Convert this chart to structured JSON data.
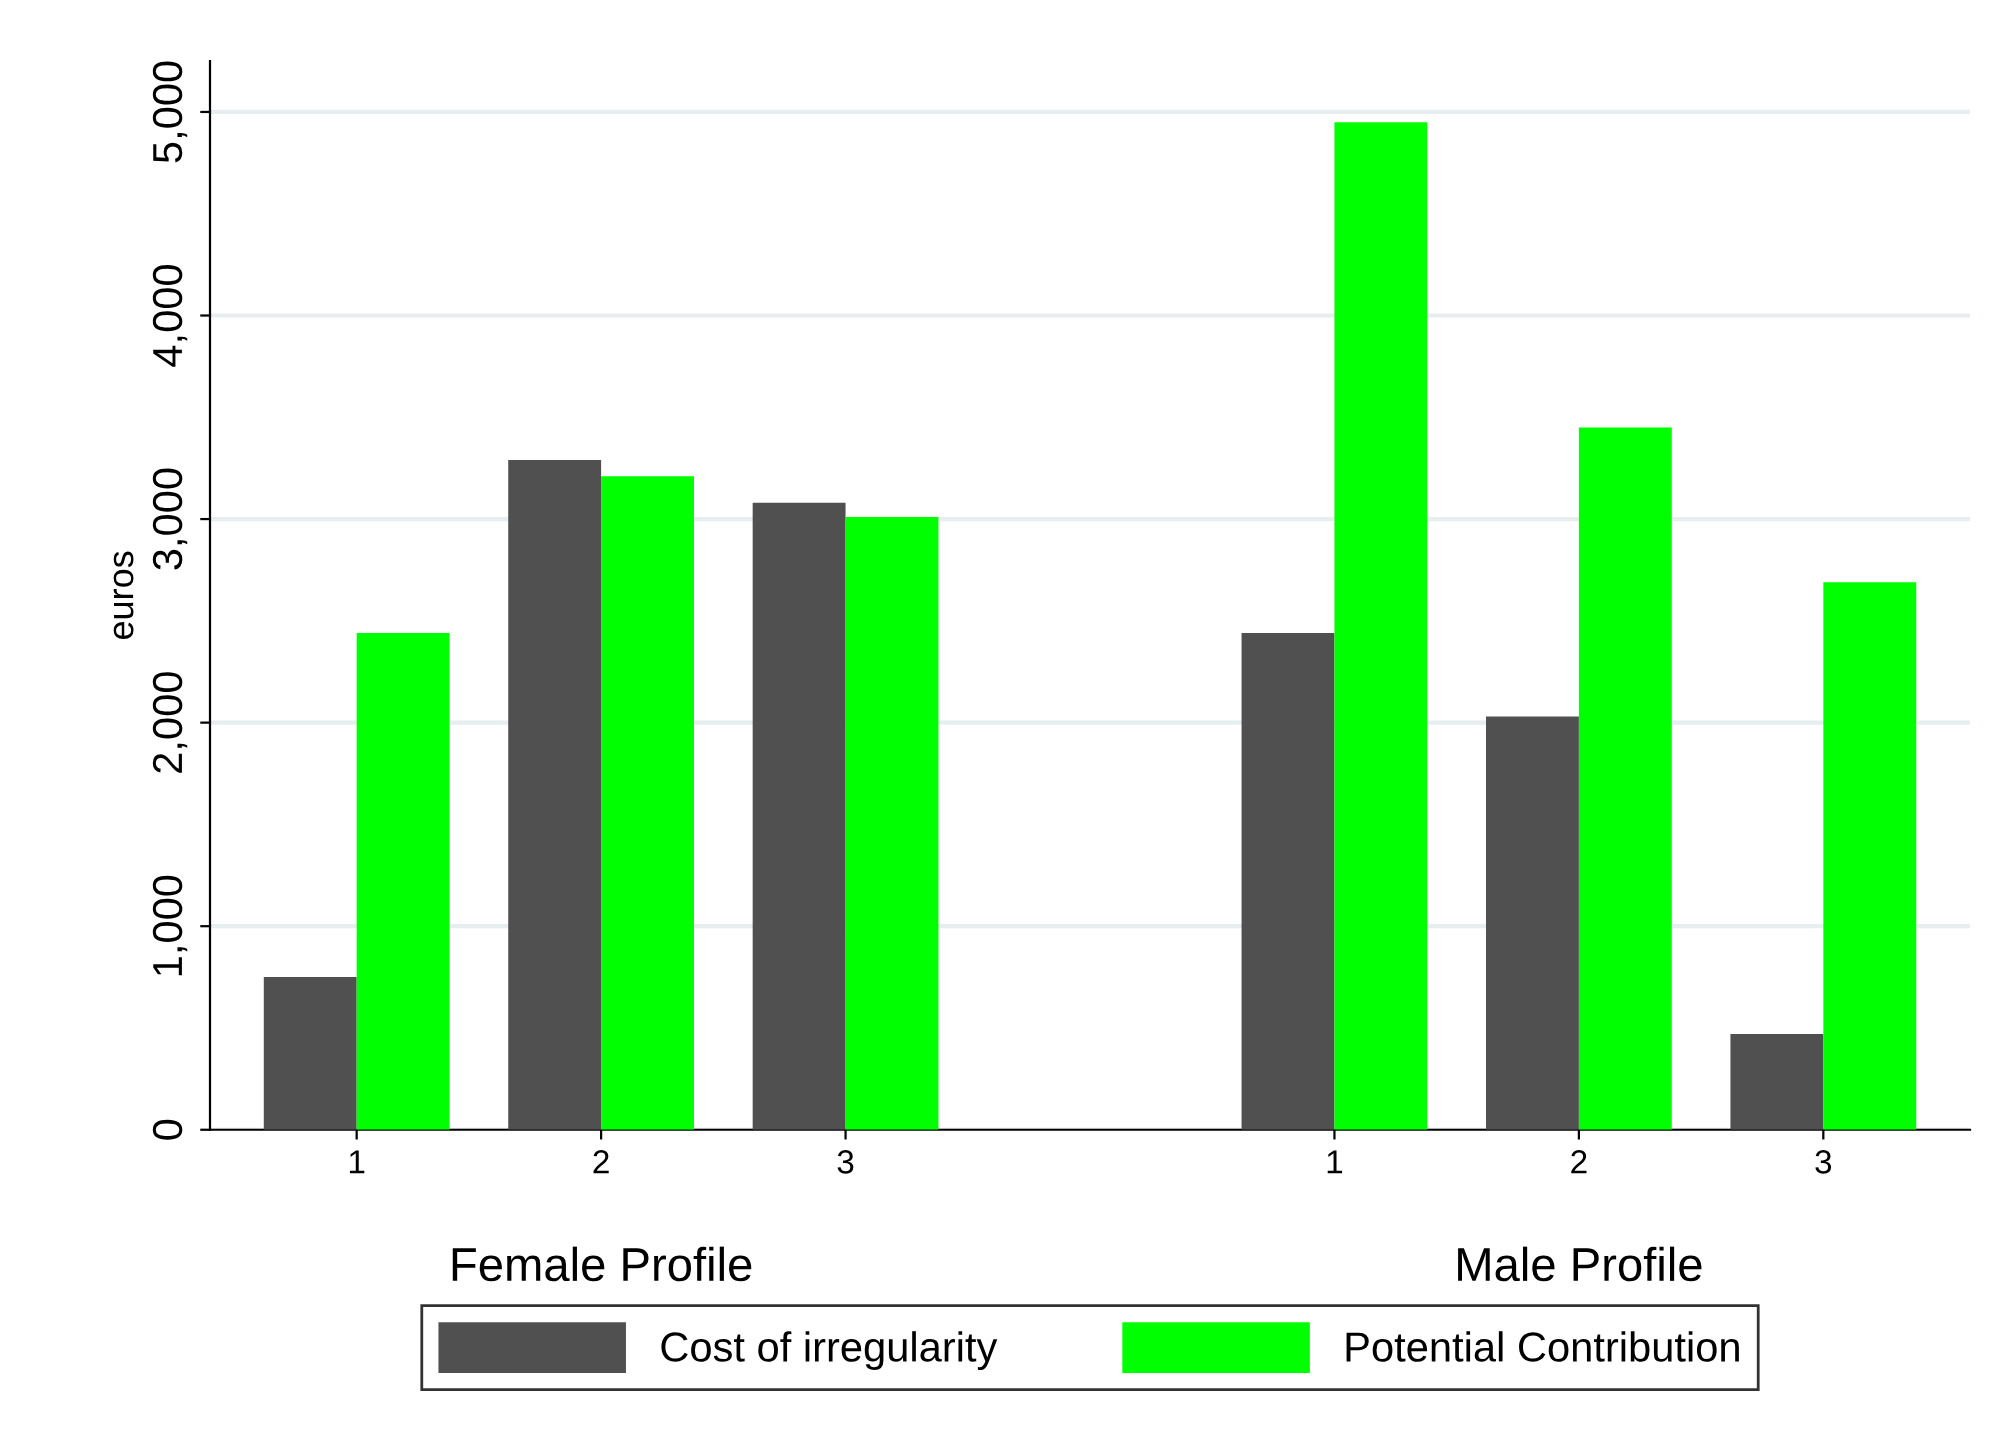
{
  "chart_data": {
    "type": "bar",
    "ylabel": "euros",
    "categories": [
      "1",
      "2",
      "3",
      null,
      "1",
      "2",
      "3"
    ],
    "series": [
      {
        "name": "Cost of irregularity",
        "color": "#505050",
        "values": [
          750,
          3290,
          3080,
          null,
          2440,
          2030,
          470
        ]
      },
      {
        "name": "Potential Contribution",
        "color": "#00ff00",
        "values": [
          2440,
          3210,
          3010,
          null,
          4950,
          3450,
          2690
        ]
      }
    ],
    "annotations": [
      "Female Profile",
      "Male Profile"
    ],
    "ylim": [
      0,
      5250
    ],
    "yticks": [
      0,
      {
        "value": 1000,
        "label": "1,000"
      },
      {
        "value": 2000,
        "label": "2,000"
      },
      {
        "value": 3000,
        "label": "3,000"
      },
      {
        "value": 4000,
        "label": "4,000"
      },
      {
        "value": 5000,
        "label": "5,000"
      }
    ],
    "grid": "y",
    "legend": "bottom"
  }
}
